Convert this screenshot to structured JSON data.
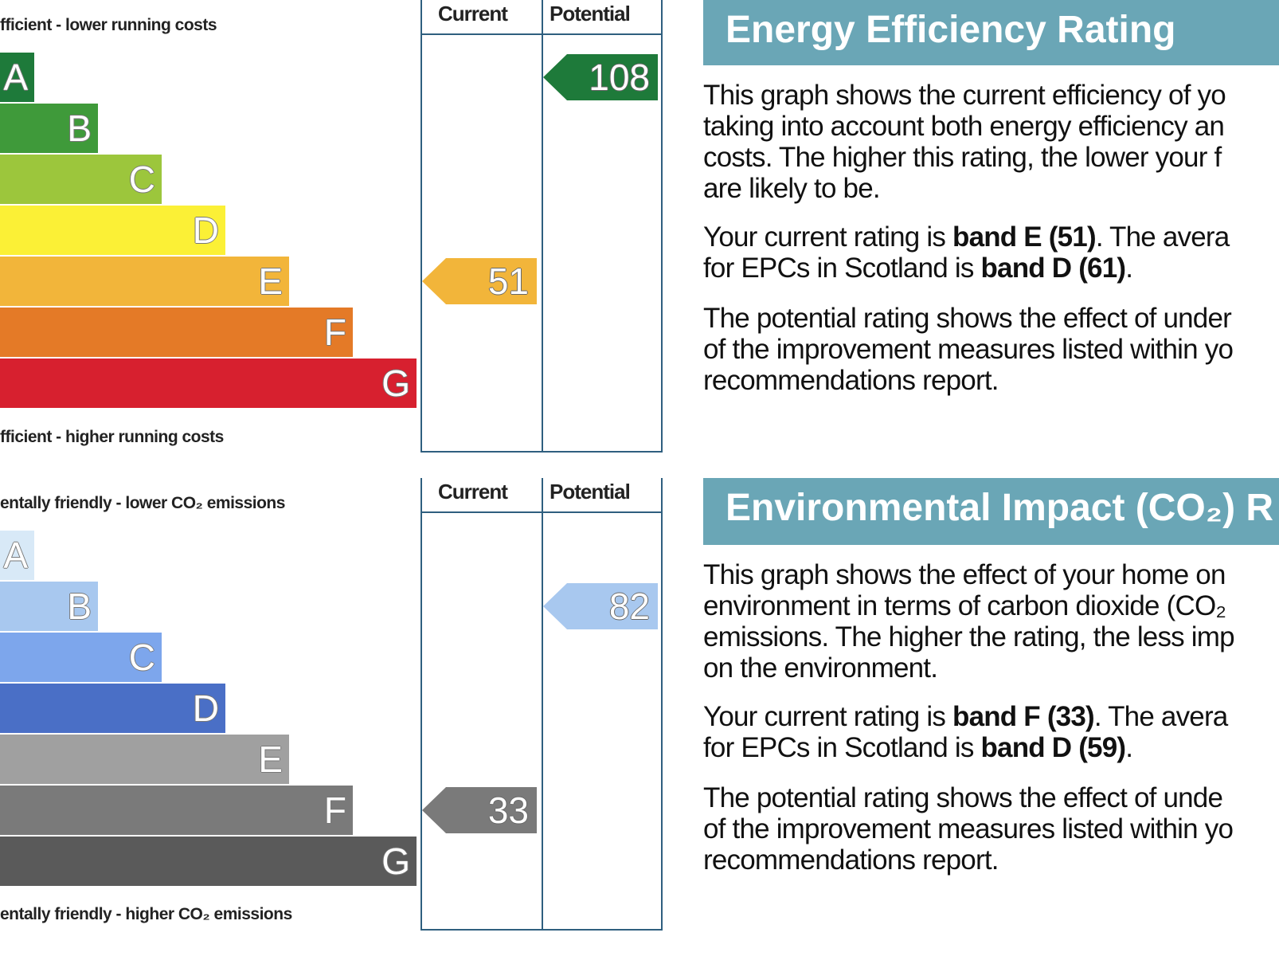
{
  "eer_graph": {
    "top_note": "fficient - lower running costs",
    "bottom_note": "fficient - higher running costs",
    "col_current": "Current",
    "col_potential": "Potential"
  },
  "eir_graph": {
    "top_note": "entally friendly - lower CO₂ emissions",
    "bottom_note": "entally friendly - higher CO₂ emissions",
    "col_current": "Current",
    "col_potential": "Potential"
  },
  "eer_panel": {
    "title": "Energy Efficiency Rating",
    "para1_lines": [
      "This graph shows the current efficiency of yo",
      "taking into account both energy efficiency an",
      "costs. The higher this rating, the lower your f",
      "are likely to be."
    ],
    "para2_a": "Your current rating is ",
    "para2_b": "band E (51)",
    "para2_c": ". The avera",
    "para2_d": "for EPCs in Scotland is ",
    "para2_e": "band D (61)",
    "para2_f": ".",
    "para3_lines": [
      "The potential rating shows the effect of under",
      "of the improvement measures listed within yo",
      "recommendations report."
    ]
  },
  "eir_panel": {
    "title": "Environmental Impact (CO₂) R",
    "para1_lines": [
      "This graph shows the effect of your home on",
      "environment in terms of carbon dioxide (CO₂",
      "emissions. The higher the rating, the less imp",
      "on the environment."
    ],
    "para2_a": "Your current rating is ",
    "para2_b": "band F (33)",
    "para2_c": ". The avera",
    "para2_d": "for EPCs in Scotland is ",
    "para2_e": "band D (59)",
    "para2_f": ".",
    "para3_lines": [
      "The potential rating shows the effect of unde",
      "of the improvement measures listed within yo",
      "recommendations report."
    ]
  },
  "chart_data": [
    {
      "type": "bar",
      "title": "Energy Efficiency Rating",
      "categories": [
        "A",
        "B",
        "C",
        "D",
        "E",
        "F",
        "G"
      ],
      "band_colors": [
        "#1e7a3a",
        "#3f9a3a",
        "#9cc63c",
        "#fbf036",
        "#f2b53a",
        "#e47a27",
        "#d7202f"
      ],
      "current": {
        "value": 51,
        "band": "E",
        "color": "#f2b53a"
      },
      "potential": {
        "value": 108,
        "band": "A",
        "color": "#1e7a3a"
      }
    },
    {
      "type": "bar",
      "title": "Environmental Impact (CO₂) R",
      "categories": [
        "A",
        "B",
        "C",
        "D",
        "E",
        "F",
        "G"
      ],
      "band_colors": [
        "#d8e9f7",
        "#a8c8ef",
        "#7da6ec",
        "#4a6fc6",
        "#a0a0a0",
        "#7a7a7a",
        "#5a5a5a"
      ],
      "current": {
        "value": 33,
        "band": "F",
        "color": "#7a7a7a"
      },
      "potential": {
        "value": 82,
        "band": "B",
        "color": "#a8c8ef"
      }
    }
  ]
}
